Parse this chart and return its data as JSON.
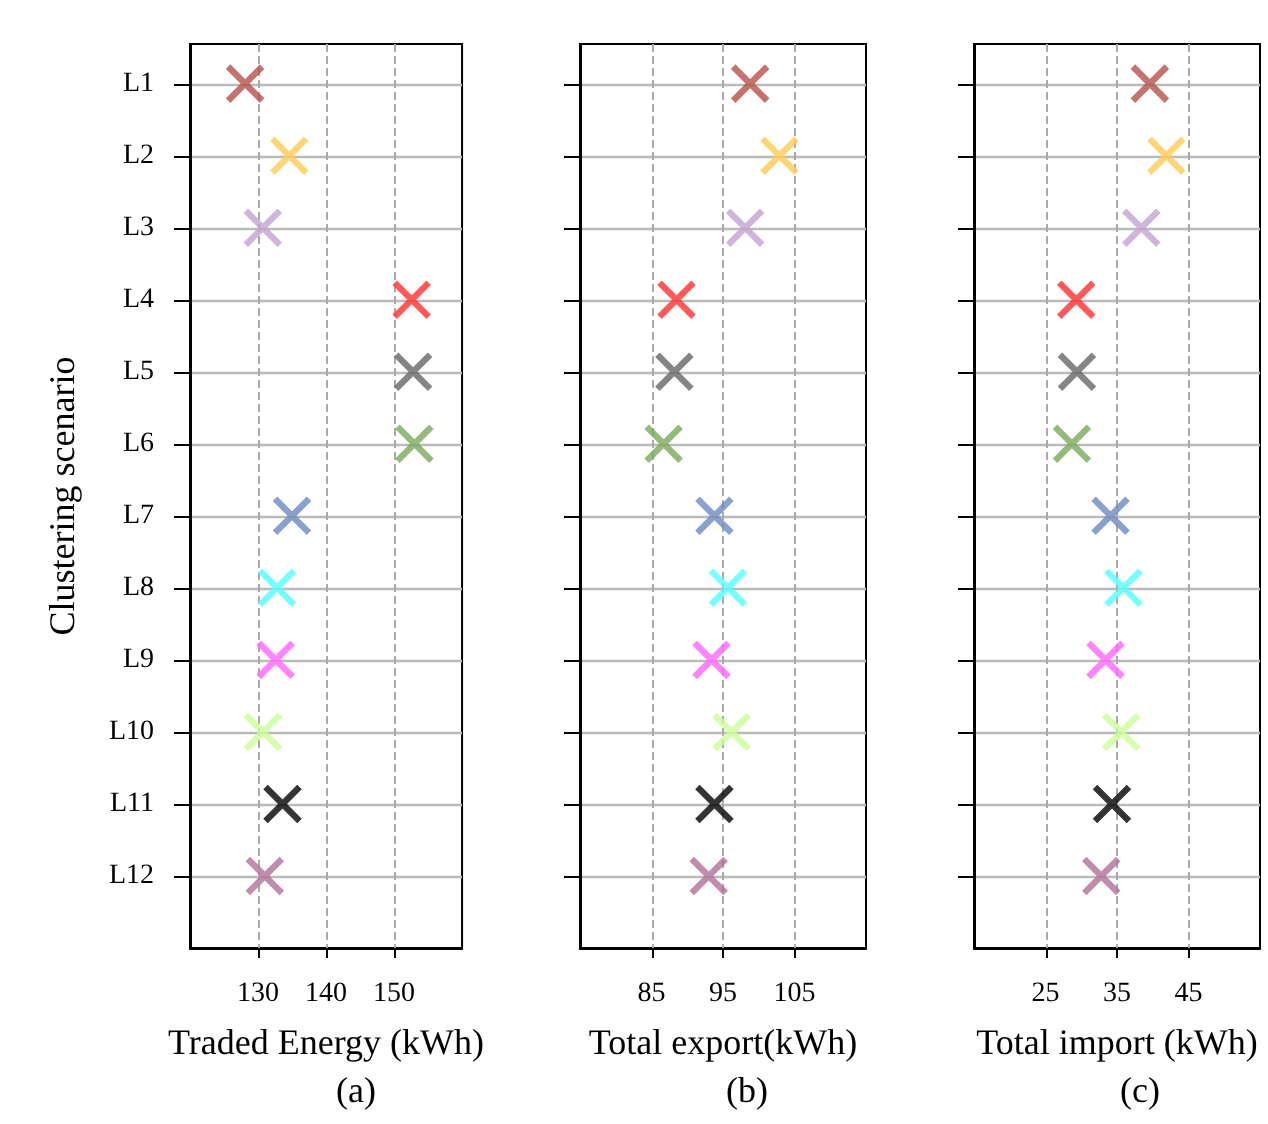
{
  "chart_data": [
    {
      "type": "scatter",
      "orientation": "horizontal",
      "categories": [
        "L1",
        "L2",
        "L3",
        "L4",
        "L5",
        "L6",
        "L7",
        "L8",
        "L9",
        "L10",
        "L11",
        "L12"
      ],
      "ylabel": "Clustering scenario",
      "xlabel": "Traded Energy (kWh)",
      "annotations": [
        "(a)"
      ],
      "values": [
        128.1,
        134.6,
        130.7,
        152.6,
        152.8,
        153.0,
        135.0,
        132.8,
        132.6,
        130.7,
        133.6,
        131.0
      ],
      "colors": [
        "#b5504a",
        "#ffcc55",
        "#c0a4d0",
        "#ff3030",
        "#666666",
        "#7aaa5a",
        "#6c8ac0",
        "#55ffff",
        "#ff66ff",
        "#ccff99",
        "#000000",
        "#b07098"
      ],
      "xlim": [
        120,
        160
      ],
      "xticks": [
        130,
        140,
        150
      ],
      "grid": true,
      "marker": "cross"
    },
    {
      "type": "scatter",
      "orientation": "horizontal",
      "xlabel": "Total export(kWh)",
      "annotations": [
        "(b)"
      ],
      "values": [
        98.8,
        102.9,
        98.1,
        88.5,
        88.2,
        86.7,
        93.8,
        95.7,
        93.4,
        96.2,
        93.8,
        93.0
      ],
      "colors": [
        "#b5504a",
        "#ffcc55",
        "#c0a4d0",
        "#ff3030",
        "#666666",
        "#7aaa5a",
        "#6c8ac0",
        "#55ffff",
        "#ff66ff",
        "#ccff99",
        "#000000",
        "#b07098"
      ],
      "xlim": [
        75,
        115
      ],
      "xticks": [
        85,
        95,
        105
      ],
      "grid": true,
      "marker": "cross",
      "tick_labels": "x"
    },
    {
      "type": "scatter",
      "orientation": "horizontal",
      "xlabel": "Total import (kWh)",
      "annotations": [
        "(c)"
      ],
      "values": [
        39.6,
        41.9,
        38.4,
        29.3,
        29.4,
        28.7,
        34.1,
        35.9,
        33.4,
        35.6,
        34.3,
        32.8
      ],
      "colors": [
        "#b5504a",
        "#ffcc55",
        "#c0a4d0",
        "#ff3030",
        "#666666",
        "#7aaa5a",
        "#6c8ac0",
        "#55ffff",
        "#ff66ff",
        "#ccff99",
        "#000000",
        "#b07098"
      ],
      "xlim": [
        15,
        55
      ],
      "xticks": [
        25,
        35,
        45
      ],
      "grid": true,
      "marker": "cross",
      "tick_labels": "x"
    }
  ]
}
